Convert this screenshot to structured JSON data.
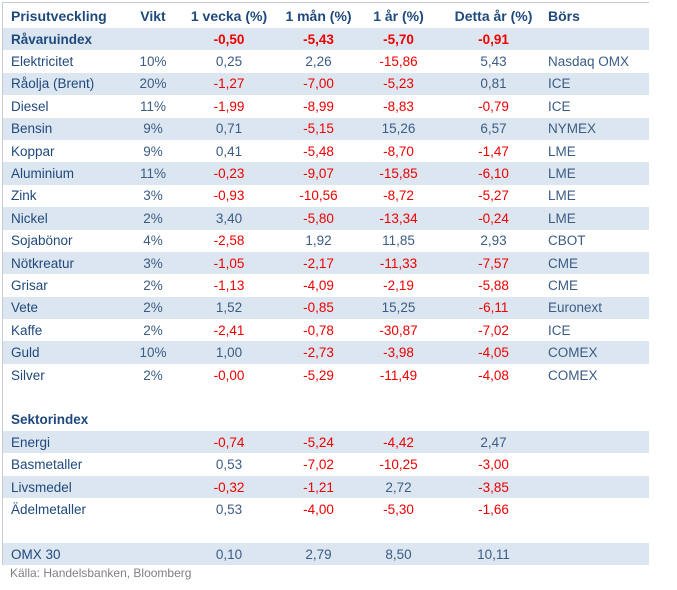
{
  "chart_data": {
    "type": "table",
    "columns": [
      "Prisutveckling",
      "Vikt",
      "1 vecka (%)",
      "1 mån (%)",
      "1 år (%)",
      "Detta år (%)",
      "Börs"
    ],
    "rows": [
      {
        "kind": "data",
        "label": "Råvaruindex",
        "vikt": "",
        "values": [
          "-0,50",
          "-5,43",
          "-5,70",
          "-0,91"
        ],
        "bors": "",
        "bold": true,
        "bg": "blue"
      },
      {
        "kind": "data",
        "label": "Elektricitet",
        "vikt": "10%",
        "values": [
          "0,25",
          "2,26",
          "-15,86",
          "5,43"
        ],
        "bors": "Nasdaq OMX",
        "bold": false,
        "bg": "white"
      },
      {
        "kind": "data",
        "label": "Råolja (Brent)",
        "vikt": "20%",
        "values": [
          "-1,27",
          "-7,00",
          "-5,23",
          "0,81"
        ],
        "bors": "ICE",
        "bold": false,
        "bg": "blue"
      },
      {
        "kind": "data",
        "label": "Diesel",
        "vikt": "11%",
        "values": [
          "-1,99",
          "-8,99",
          "-8,83",
          "-0,79"
        ],
        "bors": "ICE",
        "bold": false,
        "bg": "white"
      },
      {
        "kind": "data",
        "label": "Bensin",
        "vikt": "9%",
        "values": [
          "0,71",
          "-5,15",
          "15,26",
          "6,57"
        ],
        "bors": "NYMEX",
        "bold": false,
        "bg": "blue"
      },
      {
        "kind": "data",
        "label": "Koppar",
        "vikt": "9%",
        "values": [
          "0,41",
          "-5,48",
          "-8,70",
          "-1,47"
        ],
        "bors": "LME",
        "bold": false,
        "bg": "white"
      },
      {
        "kind": "data",
        "label": "Aluminium",
        "vikt": "11%",
        "values": [
          "-0,23",
          "-9,07",
          "-15,85",
          "-6,10"
        ],
        "bors": "LME",
        "bold": false,
        "bg": "blue"
      },
      {
        "kind": "data",
        "label": "Zink",
        "vikt": "3%",
        "values": [
          "-0,93",
          "-10,56",
          "-8,72",
          "-5,27"
        ],
        "bors": "LME",
        "bold": false,
        "bg": "white"
      },
      {
        "kind": "data",
        "label": "Nickel",
        "vikt": "2%",
        "values": [
          "3,40",
          "-5,80",
          "-13,34",
          "-0,24"
        ],
        "bors": "LME",
        "bold": false,
        "bg": "blue"
      },
      {
        "kind": "data",
        "label": "Sojabönor",
        "vikt": "4%",
        "values": [
          "-2,58",
          "1,92",
          "11,85",
          "2,93"
        ],
        "bors": "CBOT",
        "bold": false,
        "bg": "white"
      },
      {
        "kind": "data",
        "label": "Nötkreatur",
        "vikt": "3%",
        "values": [
          "-1,05",
          "-2,17",
          "-11,33",
          "-7,57"
        ],
        "bors": "CME",
        "bold": false,
        "bg": "blue"
      },
      {
        "kind": "data",
        "label": "Grisar",
        "vikt": "2%",
        "values": [
          "-1,13",
          "-4,09",
          "-2,19",
          "-5,88"
        ],
        "bors": "CME",
        "bold": false,
        "bg": "white"
      },
      {
        "kind": "data",
        "label": "Vete",
        "vikt": "2%",
        "values": [
          "1,52",
          "-0,85",
          "15,25",
          "-6,11"
        ],
        "bors": "Euronext",
        "bold": false,
        "bg": "blue"
      },
      {
        "kind": "data",
        "label": "Kaffe",
        "vikt": "2%",
        "values": [
          "-2,41",
          "-0,78",
          "-30,87",
          "-7,02"
        ],
        "bors": "ICE",
        "bold": false,
        "bg": "white"
      },
      {
        "kind": "data",
        "label": "Guld",
        "vikt": "10%",
        "values": [
          "1,00",
          "-2,73",
          "-3,98",
          "-4,05"
        ],
        "bors": "COMEX",
        "bold": false,
        "bg": "blue"
      },
      {
        "kind": "data",
        "label": "Silver",
        "vikt": "2%",
        "values": [
          "-0,00",
          "-5,29",
          "-11,49",
          "-4,08"
        ],
        "bors": "COMEX",
        "bold": false,
        "bg": "white"
      },
      {
        "kind": "spacer",
        "label": "",
        "vikt": "",
        "values": [],
        "bors": "",
        "bold": false,
        "bg": "white"
      },
      {
        "kind": "section",
        "label": "Sektorindex",
        "vikt": "",
        "values": [],
        "bors": "",
        "bold": true,
        "bg": "white"
      },
      {
        "kind": "data",
        "label": "Energi",
        "vikt": "",
        "values": [
          "-0,74",
          "-5,24",
          "-4,42",
          "2,47"
        ],
        "bors": "",
        "bold": false,
        "bg": "blue"
      },
      {
        "kind": "data",
        "label": "Basmetaller",
        "vikt": "",
        "values": [
          "0,53",
          "-7,02",
          "-10,25",
          "-3,00"
        ],
        "bors": "",
        "bold": false,
        "bg": "white"
      },
      {
        "kind": "data",
        "label": "Livsmedel",
        "vikt": "",
        "values": [
          "-0,32",
          "-1,21",
          "2,72",
          "-3,85"
        ],
        "bors": "",
        "bold": false,
        "bg": "blue"
      },
      {
        "kind": "data",
        "label": "Ädelmetaller",
        "vikt": "",
        "values": [
          "0,53",
          "-4,00",
          "-5,30",
          "-1,66"
        ],
        "bors": "",
        "bold": false,
        "bg": "white"
      },
      {
        "kind": "spacer",
        "label": "",
        "vikt": "",
        "values": [],
        "bors": "",
        "bold": false,
        "bg": "white"
      },
      {
        "kind": "data",
        "label": "OMX 30",
        "vikt": "",
        "values": [
          "0,10",
          "2,79",
          "8,50",
          "10,11"
        ],
        "bors": "",
        "bold": false,
        "bg": "blue"
      }
    ]
  },
  "footer": {
    "source_label": "Källa: Handelsbanken, Bloomberg"
  },
  "colors": {
    "row_alt_bg": "#DCE6F1",
    "header_text": "#1F497D",
    "positive_text": "#3A5C85",
    "negative_text": "#EE0000",
    "source_text": "#808080",
    "border": "#C5CCD6"
  }
}
